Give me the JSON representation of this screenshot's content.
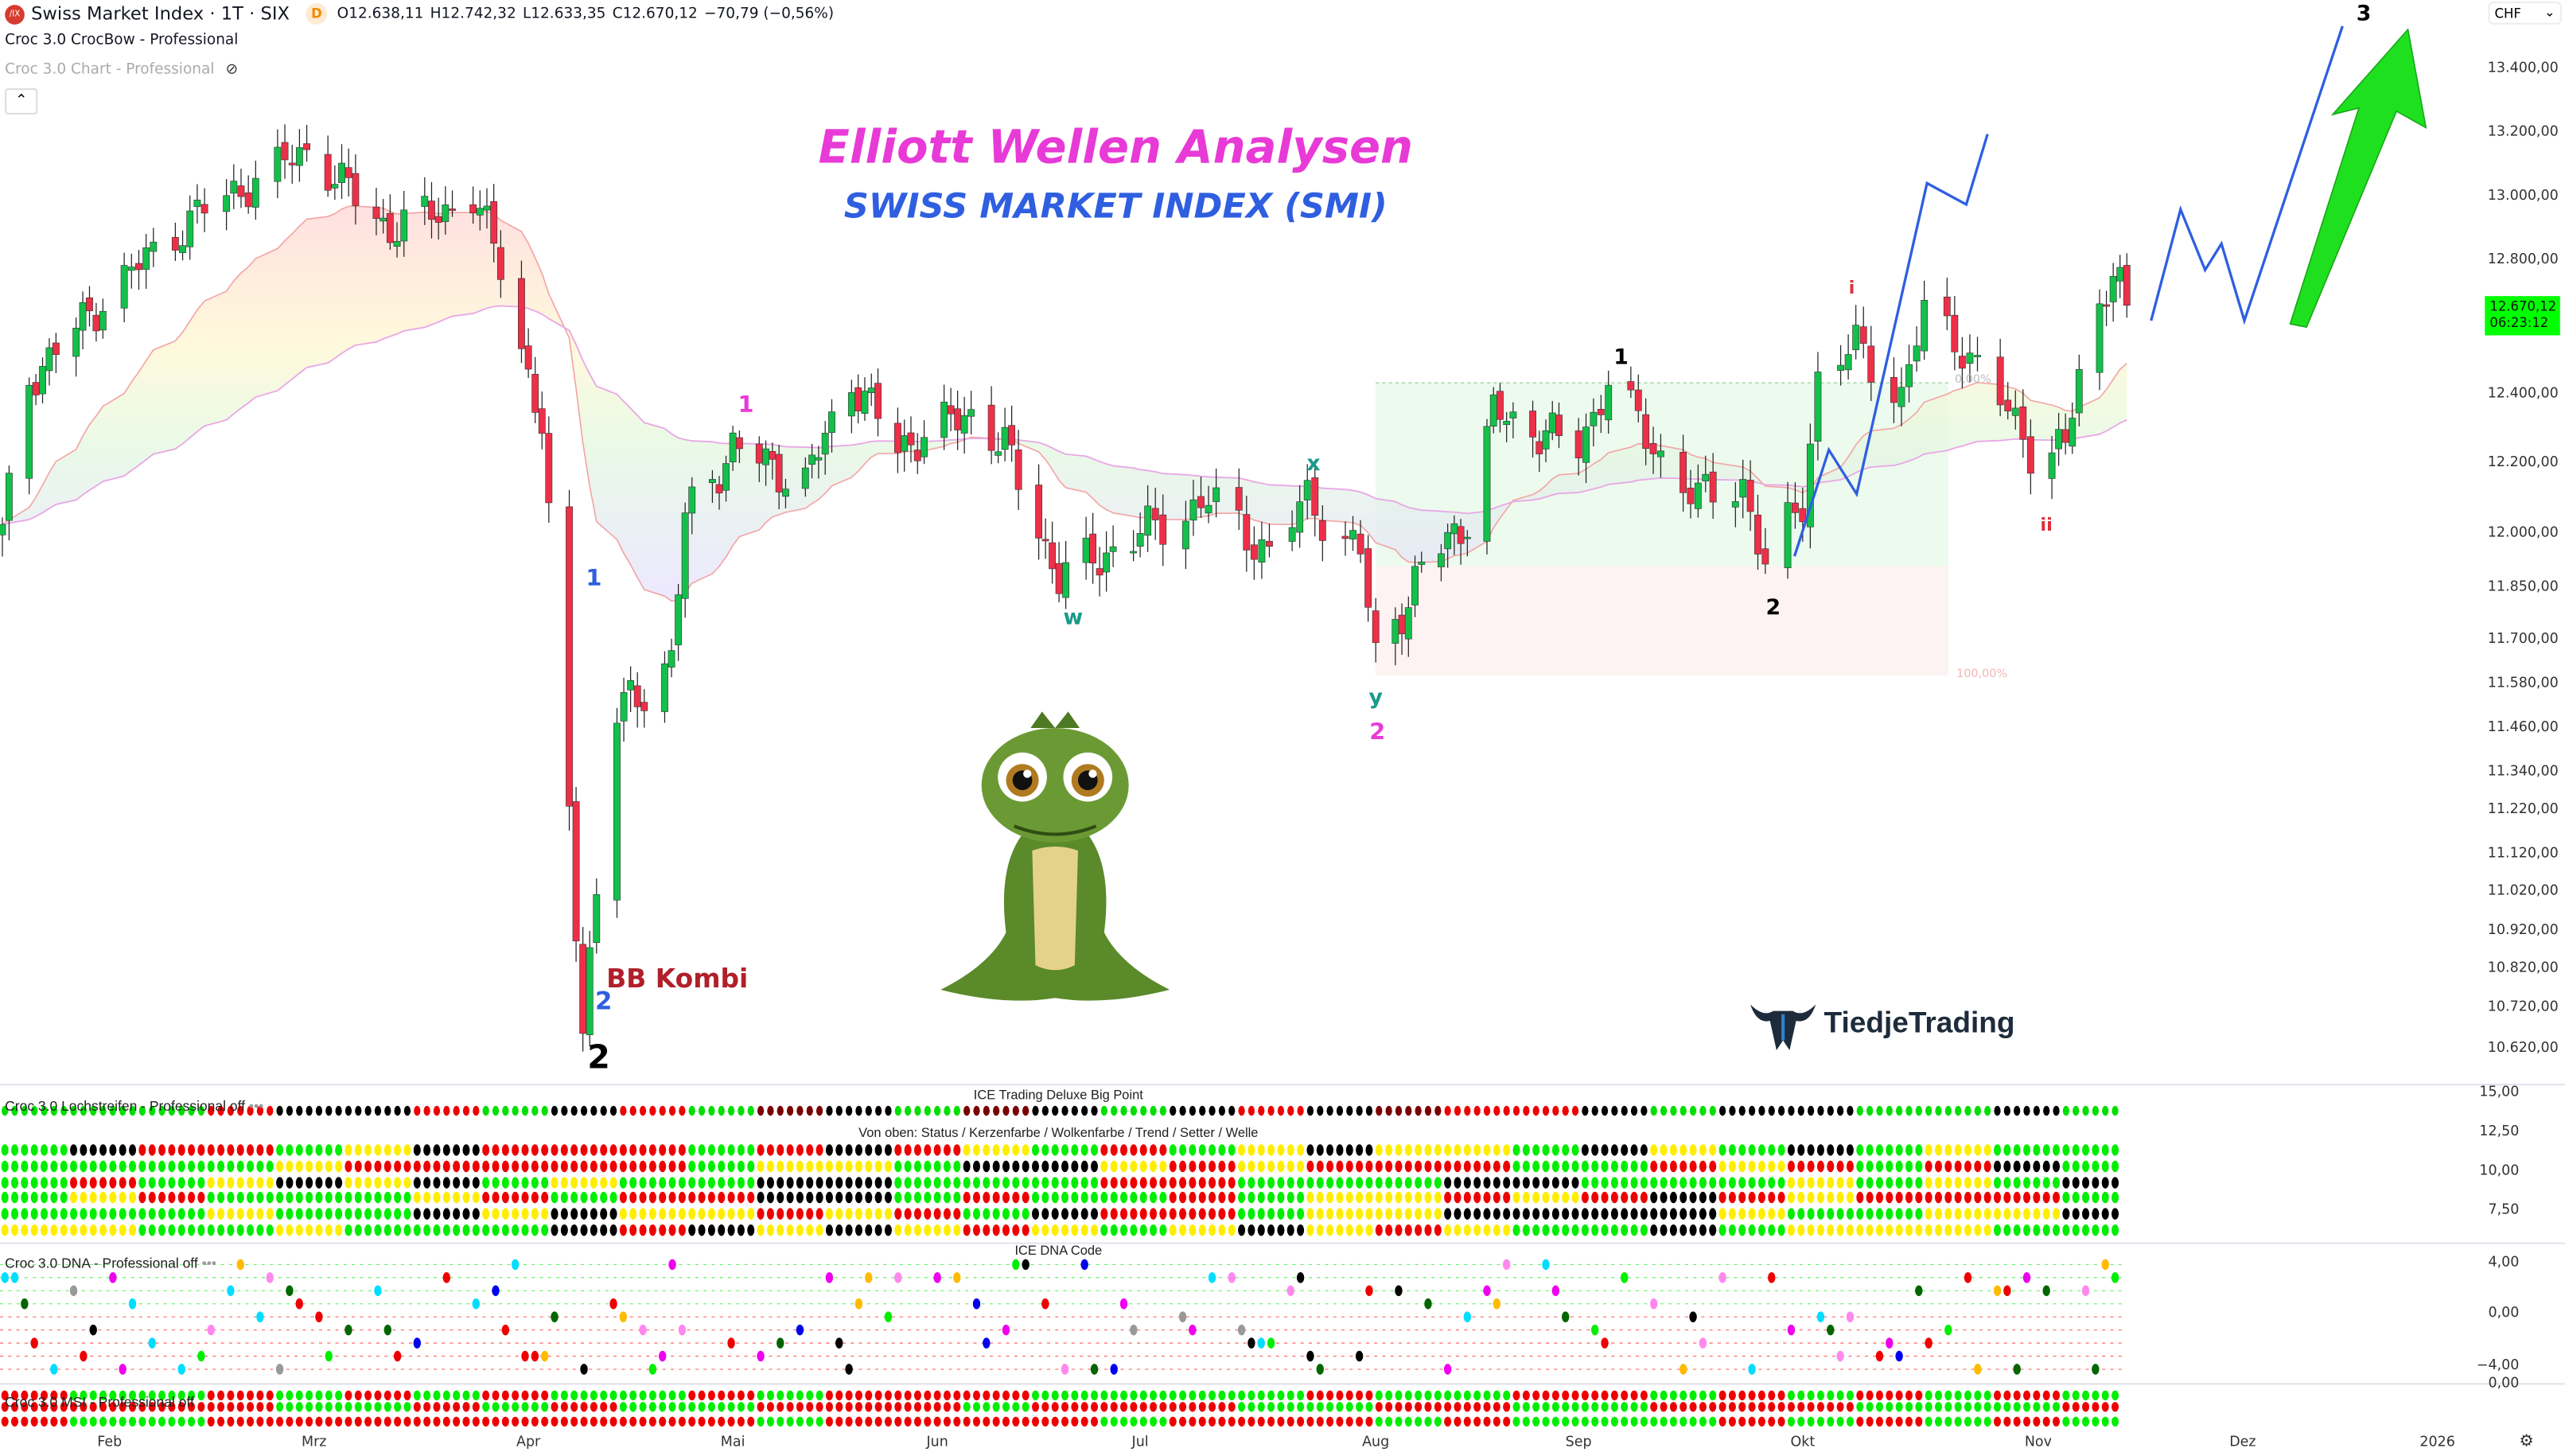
{
  "header": {
    "symbol_logo": "/IX",
    "symbol": "Swiss Market Index · 1T · SIX",
    "badge": "D",
    "open": "O12.638,11",
    "high": "H12.742,32",
    "low": "L12.633,35",
    "close": "C12.670,12",
    "change": "−70,79 (−0,56%)",
    "indicator1": "Croc 3.0 CrocBow - Professional",
    "indicator2": "Croc 3.0 Chart - Professional",
    "collapse_icon": "chevron-up-icon",
    "hidden_icon": "eye-off-icon"
  },
  "currency": "CHF",
  "price_axis": [
    "13.400,00",
    "13.200,00",
    "13.000,00",
    "12.800,00",
    "12.400,00",
    "12.200,00",
    "12.000,00",
    "11.850,00",
    "11.700,00",
    "11.580,00",
    "11.460,00",
    "11.340,00",
    "11.220,00",
    "11.120,00",
    "11.020,00",
    "10.920,00",
    "10.820,00",
    "10.720,00",
    "10.620,00"
  ],
  "last_price": {
    "value": "12.670,12",
    "countdown": "06:23:12",
    "color": "#00ff00"
  },
  "titles": {
    "main": "Elliott Wellen Analysen",
    "main_color": "#e83ad6",
    "sub": "SWISS MARKET INDEX (SMI)",
    "sub_color": "#2f5fe0"
  },
  "waves": [
    {
      "text": "1",
      "color": "#e83ad6"
    },
    {
      "text": "1",
      "color": "#2f5fe0"
    },
    {
      "text": "2",
      "color": "#2f5fe0"
    },
    {
      "text": "BB Kombi",
      "color": "#b0202a"
    },
    {
      "text": "2",
      "color": "#000000"
    },
    {
      "text": "x",
      "color": "#1a9a8a"
    },
    {
      "text": "w",
      "color": "#1a9a8a"
    },
    {
      "text": "y",
      "color": "#1a9a8a"
    },
    {
      "text": "2",
      "color": "#e83ad6"
    },
    {
      "text": "1",
      "color": "#000000"
    },
    {
      "text": "2",
      "color": "#000000"
    },
    {
      "text": "i",
      "color": "#e0303a"
    },
    {
      "text": "ii",
      "color": "#e0303a"
    },
    {
      "text": "3",
      "color": "#000000"
    }
  ],
  "fib": {
    "top": "0,00%",
    "bottom": "100,00%"
  },
  "brand": "TiedjeTrading",
  "panels": {
    "lochstreifen": "Croc 3.0 Lochstreifen - Professional off",
    "bigpoint": "ICE Trading Deluxe Big Point",
    "legend": "Von oben: Status / Kerzenfarbe / Wolkenfarbe / Trend / Setter / Welle",
    "lochstreifen_axis": [
      "15,00",
      "12,50",
      "10,00",
      "7,50"
    ],
    "dna": "Croc 3.0 DNA - Professional off",
    "dna_title": "ICE DNA Code",
    "dna_axis": [
      "4,00",
      "0,00",
      "−4,00"
    ],
    "msi": "Croc 3.0 MSI - Professional off",
    "msi_axis": [
      "0,00"
    ],
    "more": "•••"
  },
  "time_axis": [
    "Feb",
    "Mrz",
    "Apr",
    "Mai",
    "Jun",
    "Jul",
    "Aug",
    "Sep",
    "Okt",
    "Nov",
    "Dez",
    "2026"
  ],
  "settings_icon": "gear-icon",
  "chart_data": {
    "type": "candlestick",
    "ylabel": "CHF",
    "approx_closes": [
      [
        "2025-01-16",
        12000
      ],
      [
        "2025-01-20",
        12450
      ],
      [
        "2025-02-03",
        12750
      ],
      [
        "2025-02-13",
        12950
      ],
      [
        "2025-02-28",
        13150
      ],
      [
        "2025-03-12",
        12900
      ],
      [
        "2025-03-24",
        13000
      ],
      [
        "2025-03-28",
        12800
      ],
      [
        "2025-04-03",
        12300
      ],
      [
        "2025-04-07",
        11200
      ],
      [
        "2025-04-09",
        10700
      ],
      [
        "2025-04-14",
        11500
      ],
      [
        "2025-04-22",
        11650
      ],
      [
        "2025-04-24",
        12050
      ],
      [
        "2025-05-01",
        12250
      ],
      [
        "2025-05-12",
        12150
      ],
      [
        "2025-05-19",
        12450
      ],
      [
        "2025-05-26",
        12250
      ],
      [
        "2025-06-06",
        12350
      ],
      [
        "2025-06-11",
        12250
      ],
      [
        "2025-06-19",
        11880
      ],
      [
        "2025-07-01",
        12000
      ],
      [
        "2025-07-10",
        12100
      ],
      [
        "2025-07-18",
        11950
      ],
      [
        "2025-07-23",
        12100
      ],
      [
        "2025-07-30",
        11950
      ],
      [
        "2025-08-01",
        11650
      ],
      [
        "2025-08-08",
        11900
      ],
      [
        "2025-08-15",
        12050
      ],
      [
        "2025-08-19",
        12350
      ],
      [
        "2025-09-01",
        12250
      ],
      [
        "2025-09-05",
        12450
      ],
      [
        "2025-09-11",
        12250
      ],
      [
        "2025-09-17",
        12100
      ],
      [
        "2025-09-23",
        12150
      ],
      [
        "2025-09-26",
        11900
      ],
      [
        "2025-10-01",
        12100
      ],
      [
        "2025-10-03",
        12450
      ],
      [
        "2025-10-08",
        12550
      ],
      [
        "2025-10-14",
        12400
      ],
      [
        "2025-10-17",
        12650
      ],
      [
        "2025-10-22",
        12550
      ],
      [
        "2025-10-28",
        12350
      ],
      [
        "2025-10-31",
        12250
      ],
      [
        "2025-11-05",
        12250
      ],
      [
        "2025-11-07",
        12450
      ],
      [
        "2025-11-12",
        12800
      ],
      [
        "2025-11-14",
        12670
      ]
    ],
    "up_color": "#13c04a",
    "down_color": "#ee2f48"
  }
}
